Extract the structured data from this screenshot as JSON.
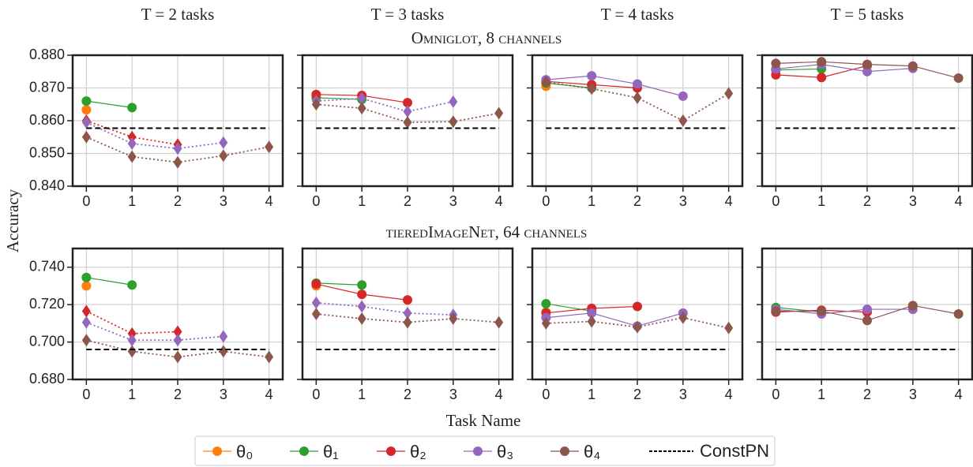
{
  "column_titles": [
    "T = 2 tasks",
    "T = 3 tasks",
    "T = 4 tasks",
    "T = 5 tasks"
  ],
  "row_titles": [
    "Omniglot, 8 channels",
    "tieredImageNet, 64 channels"
  ],
  "y_label": "Accuracy",
  "x_label": "Task Name",
  "chart_data": [
    {
      "type": "line",
      "x": [
        0,
        1,
        2,
        3,
        4
      ],
      "xlim": [
        -0.3,
        4.3
      ],
      "xticks": [
        0,
        1,
        2,
        3,
        4
      ],
      "ylim": [
        0.84,
        0.88
      ],
      "yticks": [
        {
          "value": 0.84,
          "label": "0.840"
        },
        {
          "value": 0.85,
          "label": "0.850"
        },
        {
          "value": 0.86,
          "label": "0.860"
        },
        {
          "value": 0.87,
          "label": "0.870"
        },
        {
          "value": 0.88,
          "label": "0.880"
        }
      ],
      "grid": true,
      "series": [
        {
          "name": "θ₀",
          "color": "#ff7f0e",
          "linestyle": "solid",
          "marker": "circle",
          "values": [
            0.8633,
            null,
            null,
            null,
            null
          ]
        },
        {
          "name": "θ₁",
          "color": "#2ca02c",
          "linestyle": "solid",
          "marker": "circle",
          "values": [
            0.866,
            0.864,
            null,
            null,
            null
          ]
        },
        {
          "name": "θ₂",
          "color": "#d62728",
          "linestyle": "dotted",
          "marker": "diamond",
          "values": [
            0.86,
            0.855,
            0.8527,
            null,
            null
          ]
        },
        {
          "name": "θ₃",
          "color": "#9467bd",
          "linestyle": "dotted",
          "marker": "diamond",
          "values": [
            0.8595,
            0.853,
            0.8515,
            0.8533,
            null
          ]
        },
        {
          "name": "θ₄",
          "color": "#8c564b",
          "linestyle": "dotted",
          "marker": "diamond",
          "values": [
            0.855,
            0.849,
            0.8473,
            0.8493,
            0.852
          ]
        },
        {
          "name": "ConstPN",
          "color": "#000000",
          "linestyle": "dashed",
          "marker": null,
          "values": [
            0.8577,
            0.8577,
            0.8577,
            0.8577,
            0.8577
          ]
        }
      ]
    },
    {
      "type": "line",
      "x": [
        0,
        1,
        2,
        3,
        4
      ],
      "xlim": [
        -0.3,
        4.3
      ],
      "xticks": [
        0,
        1,
        2,
        3,
        4
      ],
      "ylim": [
        0.84,
        0.88
      ],
      "yticks": [
        0.84,
        0.85,
        0.86,
        0.87,
        0.88
      ],
      "grid": true,
      "series": [
        {
          "name": "θ₀",
          "color": "#ff7f0e",
          "linestyle": "solid",
          "marker": "circle",
          "values": [
            0.8675,
            null,
            null,
            null,
            null
          ]
        },
        {
          "name": "θ₁",
          "color": "#2ca02c",
          "linestyle": "solid",
          "marker": "circle",
          "values": [
            0.867,
            0.8665,
            null,
            null,
            null
          ]
        },
        {
          "name": "θ₂",
          "color": "#d62728",
          "linestyle": "solid",
          "marker": "circle",
          "values": [
            0.868,
            0.8677,
            0.8655,
            null,
            null
          ]
        },
        {
          "name": "θ₃",
          "color": "#9467bd",
          "linestyle": "dotted",
          "marker": "diamond",
          "values": [
            0.866,
            0.8668,
            0.8628,
            0.8658,
            null
          ]
        },
        {
          "name": "θ₄",
          "color": "#8c564b",
          "linestyle": "dotted",
          "marker": "diamond",
          "values": [
            0.865,
            0.8638,
            0.8595,
            0.8597,
            0.8623
          ]
        },
        {
          "name": "ConstPN",
          "color": "#000000",
          "linestyle": "dashed",
          "marker": null,
          "values": [
            0.8577,
            0.8577,
            0.8577,
            0.8577,
            0.8577
          ]
        }
      ]
    },
    {
      "type": "line",
      "x": [
        0,
        1,
        2,
        3,
        4
      ],
      "xlim": [
        -0.3,
        4.3
      ],
      "xticks": [
        0,
        1,
        2,
        3,
        4
      ],
      "ylim": [
        0.84,
        0.88
      ],
      "yticks": [
        0.84,
        0.85,
        0.86,
        0.87,
        0.88
      ],
      "grid": true,
      "series": [
        {
          "name": "θ₀",
          "color": "#ff7f0e",
          "linestyle": "solid",
          "marker": "circle",
          "values": [
            0.8705,
            null,
            null,
            null,
            null
          ]
        },
        {
          "name": "θ₁",
          "color": "#2ca02c",
          "linestyle": "solid",
          "marker": "circle",
          "values": [
            0.8715,
            0.87,
            null,
            null,
            null
          ]
        },
        {
          "name": "θ₂",
          "color": "#d62728",
          "linestyle": "solid",
          "marker": "circle",
          "values": [
            0.872,
            0.871,
            0.87,
            null,
            null
          ]
        },
        {
          "name": "θ₃",
          "color": "#9467bd",
          "linestyle": "solid",
          "marker": "circle",
          "values": [
            0.8725,
            0.8737,
            0.8712,
            0.8675,
            null
          ]
        },
        {
          "name": "θ₄",
          "color": "#8c564b",
          "linestyle": "dotted",
          "marker": "diamond",
          "values": [
            0.8718,
            0.8698,
            0.867,
            0.86,
            0.8683
          ]
        },
        {
          "name": "ConstPN",
          "color": "#000000",
          "linestyle": "dashed",
          "marker": null,
          "values": [
            0.8577,
            0.8577,
            0.8577,
            0.8577,
            0.8577
          ]
        }
      ]
    },
    {
      "type": "line",
      "x": [
        0,
        1,
        2,
        3,
        4
      ],
      "xlim": [
        -0.3,
        4.3
      ],
      "xticks": [
        0,
        1,
        2,
        3,
        4
      ],
      "ylim": [
        0.84,
        0.88
      ],
      "yticks": [
        0.84,
        0.85,
        0.86,
        0.87,
        0.88
      ],
      "grid": true,
      "series": [
        {
          "name": "θ₀",
          "color": "#ff7f0e",
          "linestyle": "solid",
          "marker": "circle",
          "values": [
            0.8755,
            null,
            null,
            null,
            null
          ]
        },
        {
          "name": "θ₁",
          "color": "#2ca02c",
          "linestyle": "solid",
          "marker": "circle",
          "values": [
            0.8755,
            0.8758,
            null,
            null,
            null
          ]
        },
        {
          "name": "θ₂",
          "color": "#d62728",
          "linestyle": "solid",
          "marker": "circle",
          "values": [
            0.874,
            0.8732,
            0.8768,
            null,
            null
          ]
        },
        {
          "name": "θ₃",
          "color": "#9467bd",
          "linestyle": "solid",
          "marker": "circle",
          "values": [
            0.8758,
            0.8772,
            0.875,
            0.876,
            null
          ]
        },
        {
          "name": "θ₄",
          "color": "#8c564b",
          "linestyle": "solid",
          "marker": "circle",
          "values": [
            0.8775,
            0.878,
            0.8772,
            0.8767,
            0.873
          ]
        },
        {
          "name": "ConstPN",
          "color": "#000000",
          "linestyle": "dashed",
          "marker": null,
          "values": [
            0.8577,
            0.8577,
            0.8577,
            0.8577,
            0.8577
          ]
        }
      ]
    },
    {
      "type": "line",
      "x": [
        0,
        1,
        2,
        3,
        4
      ],
      "xlim": [
        -0.3,
        4.3
      ],
      "xticks": [
        0,
        1,
        2,
        3,
        4
      ],
      "ylim": [
        0.68,
        0.75
      ],
      "yticks": [
        {
          "value": 0.68,
          "label": "0.680"
        },
        {
          "value": 0.7,
          "label": "0.700"
        },
        {
          "value": 0.72,
          "label": "0.720"
        },
        {
          "value": 0.74,
          "label": "0.740"
        }
      ],
      "grid": true,
      "series": [
        {
          "name": "θ₀",
          "color": "#ff7f0e",
          "linestyle": "solid",
          "marker": "circle",
          "values": [
            0.73,
            null,
            null,
            null,
            null
          ]
        },
        {
          "name": "θ₁",
          "color": "#2ca02c",
          "linestyle": "solid",
          "marker": "circle",
          "values": [
            0.7345,
            0.7305,
            null,
            null,
            null
          ]
        },
        {
          "name": "θ₂",
          "color": "#d62728",
          "linestyle": "dotted",
          "marker": "diamond",
          "values": [
            0.7165,
            0.7045,
            0.7055,
            null,
            null
          ]
        },
        {
          "name": "θ₃",
          "color": "#9467bd",
          "linestyle": "dotted",
          "marker": "diamond",
          "values": [
            0.7105,
            0.701,
            0.701,
            0.703,
            null
          ]
        },
        {
          "name": "θ₄",
          "color": "#8c564b",
          "linestyle": "dotted",
          "marker": "diamond",
          "values": [
            0.701,
            0.695,
            0.692,
            0.695,
            0.692
          ]
        },
        {
          "name": "ConstPN",
          "color": "#000000",
          "linestyle": "dashed",
          "marker": null,
          "values": [
            0.696,
            0.696,
            0.696,
            0.696,
            0.696
          ]
        }
      ]
    },
    {
      "type": "line",
      "x": [
        0,
        1,
        2,
        3,
        4
      ],
      "xlim": [
        -0.3,
        4.3
      ],
      "xticks": [
        0,
        1,
        2,
        3,
        4
      ],
      "ylim": [
        0.68,
        0.75
      ],
      "yticks": [
        0.68,
        0.7,
        0.72,
        0.74
      ],
      "grid": true,
      "series": [
        {
          "name": "θ₀",
          "color": "#ff7f0e",
          "linestyle": "solid",
          "marker": "circle",
          "values": [
            0.73,
            null,
            null,
            null,
            null
          ]
        },
        {
          "name": "θ₁",
          "color": "#2ca02c",
          "linestyle": "solid",
          "marker": "circle",
          "values": [
            0.7315,
            0.7305,
            null,
            null,
            null
          ]
        },
        {
          "name": "θ₂",
          "color": "#d62728",
          "linestyle": "solid",
          "marker": "circle",
          "values": [
            0.731,
            0.7255,
            0.7225,
            null,
            null
          ]
        },
        {
          "name": "θ₃",
          "color": "#9467bd",
          "linestyle": "dotted",
          "marker": "diamond",
          "values": [
            0.721,
            0.719,
            0.7155,
            0.7145,
            null
          ]
        },
        {
          "name": "θ₄",
          "color": "#8c564b",
          "linestyle": "dotted",
          "marker": "diamond",
          "values": [
            0.715,
            0.7125,
            0.7105,
            0.7125,
            0.7105
          ]
        },
        {
          "name": "ConstPN",
          "color": "#000000",
          "linestyle": "dashed",
          "marker": null,
          "values": [
            0.696,
            0.696,
            0.696,
            0.696,
            0.696
          ]
        }
      ]
    },
    {
      "type": "line",
      "x": [
        0,
        1,
        2,
        3,
        4
      ],
      "xlim": [
        -0.3,
        4.3
      ],
      "xticks": [
        0,
        1,
        2,
        3,
        4
      ],
      "ylim": [
        0.68,
        0.75
      ],
      "yticks": [
        0.68,
        0.7,
        0.72,
        0.74
      ],
      "grid": true,
      "series": [
        {
          "name": "θ₀",
          "color": "#ff7f0e",
          "linestyle": "solid",
          "marker": "circle",
          "values": [
            0.716,
            null,
            null,
            null,
            null
          ]
        },
        {
          "name": "θ₁",
          "color": "#2ca02c",
          "linestyle": "solid",
          "marker": "circle",
          "values": [
            0.7205,
            0.7165,
            null,
            null,
            null
          ]
        },
        {
          "name": "θ₂",
          "color": "#d62728",
          "linestyle": "solid",
          "marker": "circle",
          "values": [
            0.7155,
            0.718,
            0.719,
            null,
            null
          ]
        },
        {
          "name": "θ₃",
          "color": "#9467bd",
          "linestyle": "solid",
          "marker": "circle",
          "values": [
            0.713,
            0.7155,
            0.7085,
            0.7155,
            null
          ]
        },
        {
          "name": "θ₄",
          "color": "#8c564b",
          "linestyle": "dotted",
          "marker": "diamond",
          "values": [
            0.71,
            0.711,
            0.708,
            0.713,
            0.7075
          ]
        },
        {
          "name": "ConstPN",
          "color": "#000000",
          "linestyle": "dashed",
          "marker": null,
          "values": [
            0.696,
            0.696,
            0.696,
            0.696,
            0.696
          ]
        }
      ]
    },
    {
      "type": "line",
      "x": [
        0,
        1,
        2,
        3,
        4
      ],
      "xlim": [
        -0.3,
        4.3
      ],
      "xticks": [
        0,
        1,
        2,
        3,
        4
      ],
      "ylim": [
        0.68,
        0.75
      ],
      "yticks": [
        0.68,
        0.7,
        0.72,
        0.74
      ],
      "grid": true,
      "series": [
        {
          "name": "θ₀",
          "color": "#ff7f0e",
          "linestyle": "solid",
          "marker": "circle",
          "values": [
            0.7165,
            null,
            null,
            null,
            null
          ]
        },
        {
          "name": "θ₁",
          "color": "#2ca02c",
          "linestyle": "solid",
          "marker": "circle",
          "values": [
            0.7185,
            0.716,
            null,
            null,
            null
          ]
        },
        {
          "name": "θ₂",
          "color": "#d62728",
          "linestyle": "solid",
          "marker": "circle",
          "values": [
            0.716,
            0.717,
            0.716,
            null,
            null
          ]
        },
        {
          "name": "θ₃",
          "color": "#9467bd",
          "linestyle": "solid",
          "marker": "circle",
          "values": [
            0.7175,
            0.715,
            0.7175,
            0.7175,
            null
          ]
        },
        {
          "name": "θ₄",
          "color": "#8c564b",
          "linestyle": "solid",
          "marker": "circle",
          "values": [
            0.7165,
            0.7165,
            0.7115,
            0.7195,
            0.715
          ]
        },
        {
          "name": "ConstPN",
          "color": "#000000",
          "linestyle": "dashed",
          "marker": null,
          "values": [
            0.696,
            0.696,
            0.696,
            0.696,
            0.696
          ]
        }
      ]
    }
  ]
}
